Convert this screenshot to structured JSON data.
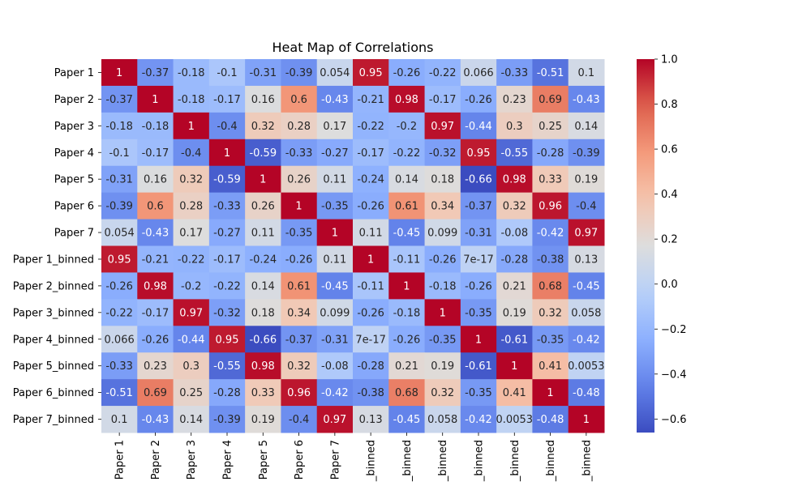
{
  "chart_data": {
    "type": "heatmap",
    "title": "Heat Map of Correlations",
    "xlabel": "",
    "ylabel": "",
    "row_labels": [
      "Paper 1",
      "Paper 2",
      "Paper 3",
      "Paper 4",
      "Paper 5",
      "Paper 6",
      "Paper 7",
      "Paper 1_binned",
      "Paper 2_binned",
      "Paper 3_binned",
      "Paper 4_binned",
      "Paper 5_binned",
      "Paper 6_binned",
      "Paper 7_binned"
    ],
    "col_labels": [
      "Paper 1",
      "Paper 2",
      "Paper 3",
      "Paper 4",
      "Paper 5",
      "Paper 6",
      "Paper 7",
      "_binned",
      "_binned",
      "_binned",
      "_binned",
      "_binned",
      "_binned",
      "_binned"
    ],
    "values": [
      [
        1,
        -0.37,
        -0.18,
        -0.1,
        -0.31,
        -0.39,
        0.054,
        0.95,
        -0.26,
        -0.22,
        0.066,
        -0.33,
        -0.51,
        0.1
      ],
      [
        -0.37,
        1,
        -0.18,
        -0.17,
        0.16,
        0.6,
        -0.43,
        -0.21,
        0.98,
        -0.17,
        -0.26,
        0.23,
        0.69,
        -0.43
      ],
      [
        -0.18,
        -0.18,
        1,
        -0.4,
        0.32,
        0.28,
        0.17,
        -0.22,
        -0.2,
        0.97,
        -0.44,
        0.3,
        0.25,
        0.14
      ],
      [
        -0.1,
        -0.17,
        -0.4,
        1,
        -0.59,
        -0.33,
        -0.27,
        -0.17,
        -0.22,
        -0.32,
        0.95,
        -0.55,
        -0.28,
        -0.39
      ],
      [
        -0.31,
        0.16,
        0.32,
        -0.59,
        1,
        0.26,
        0.11,
        -0.24,
        0.14,
        0.18,
        -0.66,
        0.98,
        0.33,
        0.19
      ],
      [
        -0.39,
        0.6,
        0.28,
        -0.33,
        0.26,
        1,
        -0.35,
        -0.26,
        0.61,
        0.34,
        -0.37,
        0.32,
        0.96,
        -0.4
      ],
      [
        0.054,
        -0.43,
        0.17,
        -0.27,
        0.11,
        -0.35,
        1,
        0.11,
        -0.45,
        0.099,
        -0.31,
        -0.08,
        -0.42,
        0.97
      ],
      [
        0.95,
        -0.21,
        -0.22,
        -0.17,
        -0.24,
        -0.26,
        0.11,
        1,
        -0.11,
        -0.26,
        7e-17,
        -0.28,
        -0.38,
        0.13
      ],
      [
        -0.26,
        0.98,
        -0.2,
        -0.22,
        0.14,
        0.61,
        -0.45,
        -0.11,
        1,
        -0.18,
        -0.26,
        0.21,
        0.68,
        -0.45
      ],
      [
        -0.22,
        -0.17,
        0.97,
        -0.32,
        0.18,
        0.34,
        0.099,
        -0.26,
        -0.18,
        1,
        -0.35,
        0.19,
        0.32,
        0.058
      ],
      [
        0.066,
        -0.26,
        -0.44,
        0.95,
        -0.66,
        -0.37,
        -0.31,
        7e-17,
        -0.26,
        -0.35,
        1,
        -0.61,
        -0.35,
        -0.42
      ],
      [
        -0.33,
        0.23,
        0.3,
        -0.55,
        0.98,
        0.32,
        -0.08,
        -0.28,
        0.21,
        0.19,
        -0.61,
        1,
        0.41,
        0.0053
      ],
      [
        -0.51,
        0.69,
        0.25,
        -0.28,
        0.33,
        0.96,
        -0.42,
        -0.38,
        0.68,
        0.32,
        -0.35,
        0.41,
        1,
        -0.48
      ],
      [
        0.1,
        -0.43,
        0.14,
        -0.39,
        0.19,
        -0.4,
        0.97,
        0.13,
        -0.45,
        0.058,
        -0.42,
        0.0053,
        -0.48,
        1
      ]
    ],
    "labels": [
      [
        "1",
        "-0.37",
        "-0.18",
        "-0.1",
        "-0.31",
        "-0.39",
        "0.054",
        "0.95",
        "-0.26",
        "-0.22",
        "0.066",
        "-0.33",
        "-0.51",
        "0.1"
      ],
      [
        "-0.37",
        "1",
        "-0.18",
        "-0.17",
        "0.16",
        "0.6",
        "-0.43",
        "-0.21",
        "0.98",
        "-0.17",
        "-0.26",
        "0.23",
        "0.69",
        "-0.43"
      ],
      [
        "-0.18",
        "-0.18",
        "1",
        "-0.4",
        "0.32",
        "0.28",
        "0.17",
        "-0.22",
        "-0.2",
        "0.97",
        "-0.44",
        "0.3",
        "0.25",
        "0.14"
      ],
      [
        "-0.1",
        "-0.17",
        "-0.4",
        "1",
        "-0.59",
        "-0.33",
        "-0.27",
        "-0.17",
        "-0.22",
        "-0.32",
        "0.95",
        "-0.55",
        "-0.28",
        "-0.39"
      ],
      [
        "-0.31",
        "0.16",
        "0.32",
        "-0.59",
        "1",
        "0.26",
        "0.11",
        "-0.24",
        "0.14",
        "0.18",
        "-0.66",
        "0.98",
        "0.33",
        "0.19"
      ],
      [
        "-0.39",
        "0.6",
        "0.28",
        "-0.33",
        "0.26",
        "1",
        "-0.35",
        "-0.26",
        "0.61",
        "0.34",
        "-0.37",
        "0.32",
        "0.96",
        "-0.4"
      ],
      [
        "0.054",
        "-0.43",
        "0.17",
        "-0.27",
        "0.11",
        "-0.35",
        "1",
        "0.11",
        "-0.45",
        "0.099",
        "-0.31",
        "-0.08",
        "-0.42",
        "0.97"
      ],
      [
        "0.95",
        "-0.21",
        "-0.22",
        "-0.17",
        "-0.24",
        "-0.26",
        "0.11",
        "1",
        "-0.11",
        "-0.26",
        "7e-17",
        "-0.28",
        "-0.38",
        "0.13"
      ],
      [
        "-0.26",
        "0.98",
        "-0.2",
        "-0.22",
        "0.14",
        "0.61",
        "-0.45",
        "-0.11",
        "1",
        "-0.18",
        "-0.26",
        "0.21",
        "0.68",
        "-0.45"
      ],
      [
        "-0.22",
        "-0.17",
        "0.97",
        "-0.32",
        "0.18",
        "0.34",
        "0.099",
        "-0.26",
        "-0.18",
        "1",
        "-0.35",
        "0.19",
        "0.32",
        "0.058"
      ],
      [
        "0.066",
        "-0.26",
        "-0.44",
        "0.95",
        "-0.66",
        "-0.37",
        "-0.31",
        "7e-17",
        "-0.26",
        "-0.35",
        "1",
        "-0.61",
        "-0.35",
        "-0.42"
      ],
      [
        "-0.33",
        "0.23",
        "0.3",
        "-0.55",
        "0.98",
        "0.32",
        "-0.08",
        "-0.28",
        "0.21",
        "0.19",
        "-0.61",
        "1",
        "0.41",
        "0.0053"
      ],
      [
        "-0.51",
        "0.69",
        "0.25",
        "-0.28",
        "0.33",
        "0.96",
        "-0.42",
        "-0.38",
        "0.68",
        "0.32",
        "-0.35",
        "0.41",
        "1",
        "-0.48"
      ],
      [
        "0.1",
        "-0.43",
        "0.14",
        "-0.39",
        "0.19",
        "-0.4",
        "0.97",
        "0.13",
        "-0.45",
        "0.058",
        "-0.42",
        "0.0053",
        "-0.48",
        "1"
      ]
    ],
    "colormap": "coolwarm",
    "vmin": -0.66,
    "vmax": 1.0,
    "colorbar": {
      "ticks": [
        1.0,
        0.8,
        0.6,
        0.4,
        0.2,
        0.0,
        -0.2,
        -0.4,
        -0.6
      ],
      "tick_labels": [
        "1.0",
        "0.8",
        "0.6",
        "0.4",
        "0.2",
        "0.0",
        "−0.2",
        "−0.4",
        "−0.6"
      ],
      "placement": "right"
    },
    "grid": false,
    "annotations": true
  }
}
